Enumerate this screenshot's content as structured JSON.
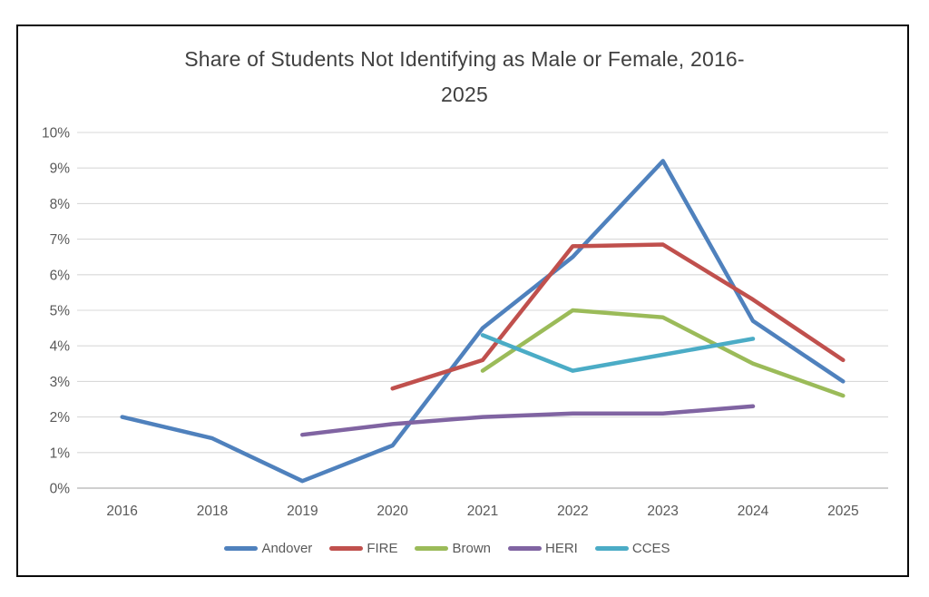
{
  "chart_data": {
    "type": "line",
    "title": "Share of Students Not Identifying as Male or Female, 2016-2025",
    "title_lines": [
      "Share of Students Not Identifying as Male or Female, 2016-",
      "2025"
    ],
    "categories": [
      "2016",
      "2018",
      "2019",
      "2020",
      "2021",
      "2022",
      "2023",
      "2024",
      "2025"
    ],
    "y_axis": {
      "min": 0,
      "max": 10,
      "step": 1,
      "unit": "%",
      "tick_labels": [
        "0%",
        "1%",
        "2%",
        "3%",
        "4%",
        "5%",
        "6%",
        "7%",
        "8%",
        "9%",
        "10%"
      ]
    },
    "xlabel": "",
    "ylabel": "",
    "grid": true,
    "legend_position": "bottom",
    "series": [
      {
        "name": "Andover",
        "color": "#4F81BD",
        "values": [
          2.0,
          1.4,
          0.2,
          1.2,
          4.5,
          6.5,
          9.2,
          4.7,
          3.0
        ]
      },
      {
        "name": "FIRE",
        "color": "#C0504D",
        "values": [
          null,
          null,
          null,
          2.8,
          3.6,
          6.8,
          6.85,
          5.3,
          3.6
        ]
      },
      {
        "name": "Brown",
        "color": "#9BBB59",
        "values": [
          null,
          null,
          null,
          null,
          3.3,
          5.0,
          4.8,
          3.5,
          2.6
        ]
      },
      {
        "name": "HERI",
        "color": "#8064A2",
        "values": [
          null,
          null,
          1.5,
          1.8,
          2.0,
          2.1,
          2.1,
          2.3,
          null
        ]
      },
      {
        "name": "CCES",
        "color": "#4BACC6",
        "values": [
          null,
          null,
          null,
          null,
          4.3,
          3.3,
          3.75,
          4.2,
          null
        ]
      }
    ]
  },
  "colors": {
    "background": "#FFFFFF",
    "frame_border": "#0A0A0A",
    "gridline": "#D9D9D9",
    "axis_line": "#BFBFBF",
    "tick_label": "#595959",
    "title_text": "#404040"
  }
}
